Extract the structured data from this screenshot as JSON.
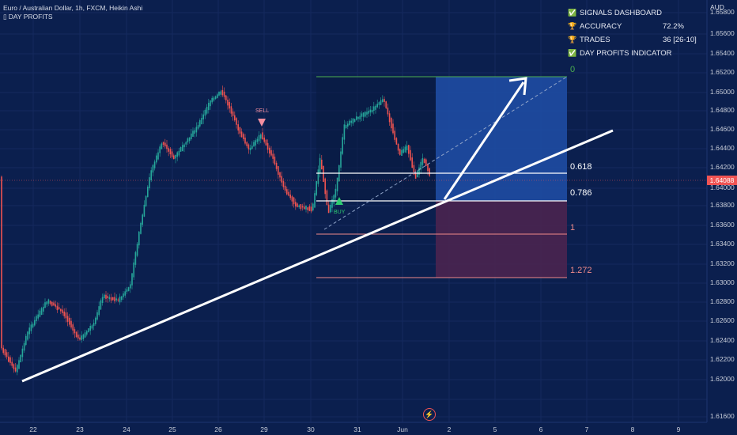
{
  "header": {
    "symbol_line": "Euro / Australian Dollar, 1h, FXCM, Heikin Ashi",
    "indicator_icon": "indicator-icon",
    "indicator_line": "DAY PROFITS"
  },
  "price_axis": {
    "unit": "AUD",
    "ticks": [
      "1.65800",
      "1.65600",
      "1.65400",
      "1.65200",
      "1.65000",
      "1.64800",
      "1.64600",
      "1.64400",
      "1.64200",
      "1.64000",
      "1.63800",
      "1.63600",
      "1.63400",
      "1.63200",
      "1.63000",
      "1.62800",
      "1.62600",
      "1.62400",
      "1.62200",
      "1.62000",
      "1.61600"
    ],
    "current_price": "1.64088"
  },
  "time_axis": {
    "ticks": [
      "22",
      "23",
      "24",
      "25",
      "26",
      "29",
      "30",
      "31",
      "Jun",
      "2",
      "5",
      "6",
      "7",
      "8",
      "9"
    ]
  },
  "dashboard": {
    "title": "SIGNALS DASHBOARD",
    "title_icon": "check-icon",
    "accuracy_label": "ACCURACY",
    "accuracy_value": "72.2%",
    "accuracy_icon": "trophy-icon",
    "trades_label": "TRADES",
    "trades_value": "36 [26-10]",
    "trades_icon": "trophy-icon",
    "indicator_label": "DAY PROFITS INDICATOR",
    "indicator_icon": "check-icon"
  },
  "fib_levels": {
    "l0": "0",
    "l618": "0.618",
    "l786": "0.786",
    "l1": "1",
    "l1272": "1.272"
  },
  "signals": {
    "sell": "SELL",
    "buy": "BUY"
  },
  "colors": {
    "background": "#0b1f4e",
    "bull": "#26a69a",
    "bear": "#ef5350",
    "target_zone": "#1e4ba3",
    "stop_zone": "#4a2350",
    "price_tag": "#f05454"
  },
  "footer": {
    "lightning_icon": "lightning-icon"
  }
}
